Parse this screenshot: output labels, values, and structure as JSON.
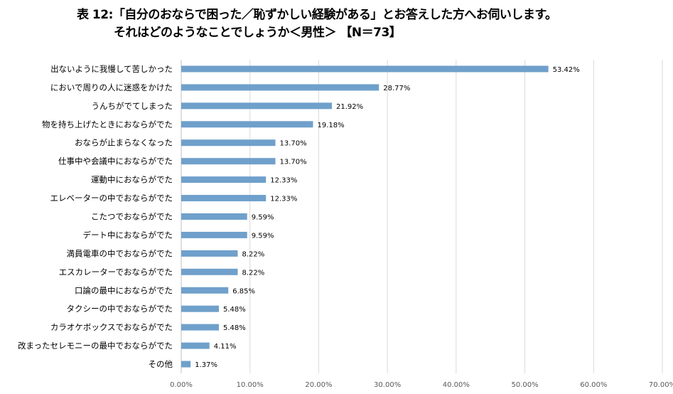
{
  "chart_data": {
    "type": "bar",
    "orientation": "horizontal",
    "title": "表 12:「自分のおならで困った／恥ずかしい経験がある」とお答えした方へお伺いします。",
    "subtitle": "それはどのようなことでしょうか＜男性＞ 【N＝73】",
    "categories": [
      "出ないように我慢して苦しかった",
      "においで周りの人に迷惑をかけた",
      "うんちがでてしまった",
      "物を持ち上げたときにおならがでた",
      "おならが止まらなくなった",
      "仕事中や会議中におならがでた",
      "運動中におならがでた",
      "エレベーターの中でおならがでた",
      "こたつでおならがでた",
      "デート中におならがでた",
      "満員電車の中でおならがでた",
      "エスカレーターでおならがでた",
      "口論の最中におならがでた",
      "タクシーの中でおならがでた",
      "カラオケボックスでおならがでた",
      "改まったセレモニーの最中でおならがでた",
      "その他"
    ],
    "values": [
      53.42,
      28.77,
      21.92,
      19.18,
      13.7,
      13.7,
      12.33,
      12.33,
      9.59,
      9.59,
      8.22,
      8.22,
      6.85,
      5.48,
      5.48,
      4.11,
      1.37
    ],
    "data_labels": [
      "53.42%",
      "28.77%",
      "21.92%",
      "19.18%",
      "13.70%",
      "13.70%",
      "12.33%",
      "12.33%",
      "9.59%",
      "9.59%",
      "8.22%",
      "8.22%",
      "6.85%",
      "5.48%",
      "5.48%",
      "4.11%",
      "1.37%"
    ],
    "xticks": [
      "0.00%",
      "10.00%",
      "20.00%",
      "30.00%",
      "40.00%",
      "50.00%",
      "60.00%",
      "70.00%"
    ],
    "xlim": [
      0,
      70
    ],
    "grid": true,
    "bar_color": "#6fa0cb",
    "xlabel": "",
    "ylabel": ""
  }
}
